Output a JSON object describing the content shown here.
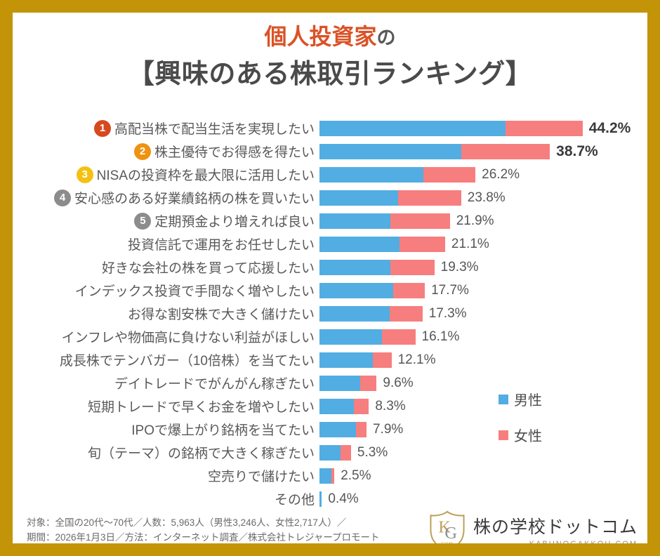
{
  "title": {
    "line1_accent": "個人投資家",
    "line1_suffix": "の",
    "line2": "【興味のある株取引ランキング】"
  },
  "colors": {
    "male": "#52ADE2",
    "female": "#F77E7E",
    "frame_gold": "#C49408",
    "title_accent": "#DB5226"
  },
  "chart_data": {
    "type": "bar",
    "orientation": "horizontal",
    "stacked": true,
    "unit": "%",
    "series_names": [
      "男性",
      "女性"
    ],
    "legend": [
      {
        "label": "男性",
        "color": "#52ADE2"
      },
      {
        "label": "女性",
        "color": "#F77E7E"
      }
    ],
    "rows": [
      {
        "rank": 1,
        "badge_color": "#D6491F",
        "label": "高配当株で配当生活を実現したい",
        "total": 44.2,
        "total_label": "44.2%",
        "male": 31.2,
        "female": 13.0,
        "emphasis": true
      },
      {
        "rank": 2,
        "badge_color": "#EF9210",
        "label": "株主優待でお得感を得たい",
        "total": 38.7,
        "total_label": "38.7%",
        "male": 23.8,
        "female": 14.9,
        "emphasis": true
      },
      {
        "rank": 3,
        "badge_color": "#F3C113",
        "label": "NISAの投資枠を最大限に活用したい",
        "total": 26.2,
        "total_label": "26.2%",
        "male": 17.5,
        "female": 8.7,
        "emphasis": false
      },
      {
        "rank": 4,
        "badge_color": "#8C8C8C",
        "label": "安心感のある好業績銘柄の株を買いたい",
        "total": 23.8,
        "total_label": "23.8%",
        "male": 13.2,
        "female": 10.6,
        "emphasis": false
      },
      {
        "rank": 5,
        "badge_color": "#8C8C8C",
        "label": "定期預金より増えれば良い",
        "total": 21.9,
        "total_label": "21.9%",
        "male": 11.9,
        "female": 10.0,
        "emphasis": false
      },
      {
        "rank": 6,
        "badge_color": null,
        "label": "投資信託で運用をお任せしたい",
        "total": 21.1,
        "total_label": "21.1%",
        "male": 13.4,
        "female": 7.7,
        "emphasis": false
      },
      {
        "rank": 7,
        "badge_color": null,
        "label": "好きな会社の株を買って応援したい",
        "total": 19.3,
        "total_label": "19.3%",
        "male": 11.9,
        "female": 7.4,
        "emphasis": false
      },
      {
        "rank": 8,
        "badge_color": null,
        "label": "インデックス投資で手間なく増やしたい",
        "total": 17.7,
        "total_label": "17.7%",
        "male": 12.4,
        "female": 5.3,
        "emphasis": false
      },
      {
        "rank": 9,
        "badge_color": null,
        "label": "お得な割安株で大きく儲けたい",
        "total": 17.3,
        "total_label": "17.3%",
        "male": 11.8,
        "female": 5.5,
        "emphasis": false
      },
      {
        "rank": 10,
        "badge_color": null,
        "label": "インフレや物価高に負けない利益がほしい",
        "total": 16.1,
        "total_label": "16.1%",
        "male": 10.5,
        "female": 5.6,
        "emphasis": false
      },
      {
        "rank": 11,
        "badge_color": null,
        "label": "成長株でテンバガー（10倍株）を当てたい",
        "total": 12.1,
        "total_label": "12.1%",
        "male": 9.0,
        "female": 3.1,
        "emphasis": false
      },
      {
        "rank": 12,
        "badge_color": null,
        "label": "デイトレードでがんがん稼ぎたい",
        "total": 9.6,
        "total_label": "9.6%",
        "male": 6.8,
        "female": 2.8,
        "emphasis": false
      },
      {
        "rank": 13,
        "badge_color": null,
        "label": "短期トレードで早くお金を増やしたい",
        "total": 8.3,
        "total_label": "8.3%",
        "male": 5.8,
        "female": 2.5,
        "emphasis": false
      },
      {
        "rank": 14,
        "badge_color": null,
        "label": "IPOで爆上がり銘柄を当てたい",
        "total": 7.9,
        "total_label": "7.9%",
        "male": 6.1,
        "female": 1.8,
        "emphasis": false
      },
      {
        "rank": 15,
        "badge_color": null,
        "label": "旬（テーマ）の銘柄で大きく稼ぎたい",
        "total": 5.3,
        "total_label": "5.3%",
        "male": 3.5,
        "female": 1.8,
        "emphasis": false
      },
      {
        "rank": 16,
        "badge_color": null,
        "label": "空売りで儲けたい",
        "total": 2.5,
        "total_label": "2.5%",
        "male": 2.0,
        "female": 0.5,
        "emphasis": false
      },
      {
        "rank": 17,
        "badge_color": null,
        "label": "その他",
        "total": 0.4,
        "total_label": "0.4%",
        "male": 0.4,
        "female": 0.0,
        "emphasis": false
      }
    ]
  },
  "footer": {
    "line1": "対象：全国の20代～70代／人数：5,963人（男性3,246人、女性2,717人）／",
    "line2": "期間：2026年1月3日／方法：インターネット調査／株式会社トレジャープロモート"
  },
  "logo": {
    "shield_letter_k": "K",
    "shield_letter_g": "G",
    "shield_sub": "COM",
    "name": "株の学校ドットコム",
    "domain": "KABUNOGAKKOU.COM"
  }
}
